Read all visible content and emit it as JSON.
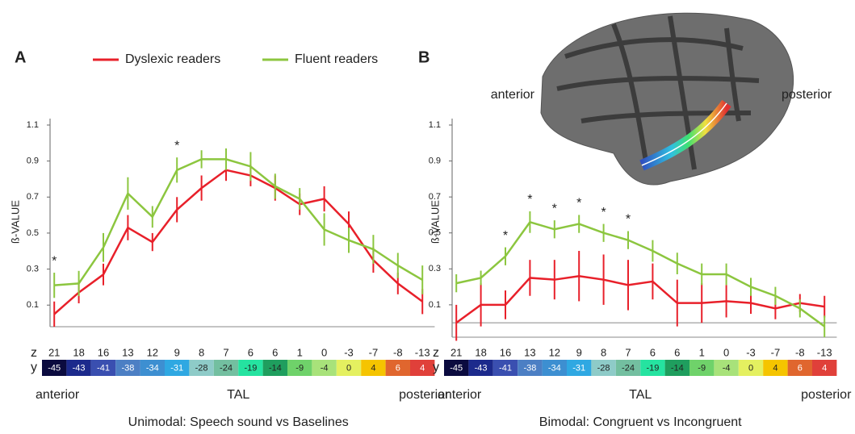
{
  "chart_data": [
    {
      "type": "line",
      "panel": "A",
      "ylabel": "ß-VALUE",
      "xlabel": "Unimodal: Speech sound vs Baselines",
      "left_label": "anterior",
      "center_label": "TAL",
      "right_label": "posterior",
      "z_label": "z",
      "y_label": "y",
      "z": [
        21,
        18,
        16,
        13,
        12,
        9,
        8,
        7,
        6,
        6,
        1,
        0,
        -3,
        -7,
        -8,
        -13
      ],
      "categories": [
        -45,
        -43,
        -41,
        -38,
        -34,
        -31,
        -28,
        -24,
        -19,
        -14,
        -9,
        -4,
        0,
        4,
        6,
        4
      ],
      "colorbar_colors": [
        "#0b0b3f",
        "#1c2a8c",
        "#3a4fb0",
        "#4c7fc4",
        "#3d8fd1",
        "#2fa8e2",
        "#8ecbc8",
        "#73bfa0",
        "#25e3a0",
        "#1f9e5e",
        "#6fd26a",
        "#a8e27a",
        "#e4f060",
        "#f5c400",
        "#e0662e",
        "#e0403a"
      ],
      "ylim": [
        -0.02,
        1.1
      ],
      "yticks": [
        0.1,
        0.3,
        0.5,
        0.7,
        0.9,
        1.1
      ],
      "zero_line": false,
      "significance_label": "*",
      "significant": [
        true,
        false,
        false,
        false,
        false,
        true,
        false,
        false,
        false,
        false,
        false,
        false,
        false,
        false,
        false,
        false
      ],
      "series": [
        {
          "name": "Dyslexic readers",
          "color": "#e8202a",
          "values": [
            0.05,
            0.17,
            0.27,
            0.53,
            0.45,
            0.63,
            0.75,
            0.85,
            0.82,
            0.75,
            0.66,
            0.69,
            0.55,
            0.35,
            0.22,
            0.12
          ],
          "errors": [
            0.07,
            0.06,
            0.06,
            0.07,
            0.05,
            0.07,
            0.07,
            0.06,
            0.06,
            0.07,
            0.06,
            0.07,
            0.07,
            0.07,
            0.06,
            0.07
          ]
        },
        {
          "name": "Fluent readers",
          "color": "#8cc63f",
          "values": [
            0.21,
            0.22,
            0.42,
            0.72,
            0.59,
            0.85,
            0.91,
            0.91,
            0.87,
            0.76,
            0.69,
            0.52,
            0.46,
            0.41,
            0.32,
            0.24
          ],
          "errors": [
            0.07,
            0.07,
            0.08,
            0.09,
            0.06,
            0.07,
            0.05,
            0.06,
            0.08,
            0.07,
            0.06,
            0.09,
            0.07,
            0.08,
            0.07,
            0.08
          ]
        }
      ]
    },
    {
      "type": "line",
      "panel": "B",
      "ylabel": "ß-VALUE",
      "xlabel": "Bimodal: Congruent vs  Incongruent",
      "left_label": "anterior",
      "center_label": "TAL",
      "right_label": "posterior",
      "image_labels": [
        "anterior",
        "posterior"
      ],
      "z_label": "z",
      "y_label": "y",
      "z": [
        21,
        18,
        16,
        13,
        12,
        9,
        8,
        7,
        6,
        6,
        1,
        0,
        -3,
        -7,
        -8,
        -13
      ],
      "categories": [
        -45,
        -43,
        -41,
        -38,
        -34,
        -31,
        -28,
        -24,
        -19,
        -14,
        -9,
        -4,
        0,
        4,
        6,
        4
      ],
      "colorbar_colors": [
        "#0b0b3f",
        "#1c2a8c",
        "#3a4fb0",
        "#4c7fc4",
        "#3d8fd1",
        "#2fa8e2",
        "#8ecbc8",
        "#73bfa0",
        "#25e3a0",
        "#1f9e5e",
        "#6fd26a",
        "#a8e27a",
        "#e4f060",
        "#f5c400",
        "#e0662e",
        "#e0403a"
      ],
      "ylim": [
        -0.08,
        1.1
      ],
      "yticks": [
        0.1,
        0.3,
        0.5,
        0.7,
        0.9,
        1.1
      ],
      "zero_line": true,
      "significance_label": "*",
      "significant": [
        false,
        false,
        true,
        true,
        true,
        true,
        true,
        true,
        false,
        false,
        false,
        false,
        false,
        false,
        false,
        false
      ],
      "series": [
        {
          "color": "#e8202a",
          "values": [
            0.0,
            0.1,
            0.1,
            0.25,
            0.24,
            0.26,
            0.24,
            0.21,
            0.23,
            0.11,
            0.11,
            0.12,
            0.11,
            0.08,
            0.11,
            0.09
          ],
          "errors": [
            0.1,
            0.12,
            0.08,
            0.1,
            0.11,
            0.14,
            0.14,
            0.14,
            0.1,
            0.13,
            0.11,
            0.09,
            0.06,
            0.06,
            0.05,
            0.06
          ]
        },
        {
          "color": "#8cc63f",
          "values": [
            0.22,
            0.25,
            0.37,
            0.56,
            0.52,
            0.55,
            0.5,
            0.46,
            0.4,
            0.33,
            0.27,
            0.27,
            0.2,
            0.15,
            0.08,
            -0.02
          ],
          "errors": [
            0.05,
            0.04,
            0.05,
            0.06,
            0.05,
            0.05,
            0.05,
            0.05,
            0.06,
            0.06,
            0.06,
            0.06,
            0.05,
            0.05,
            0.05,
            0.06
          ]
        }
      ]
    }
  ]
}
